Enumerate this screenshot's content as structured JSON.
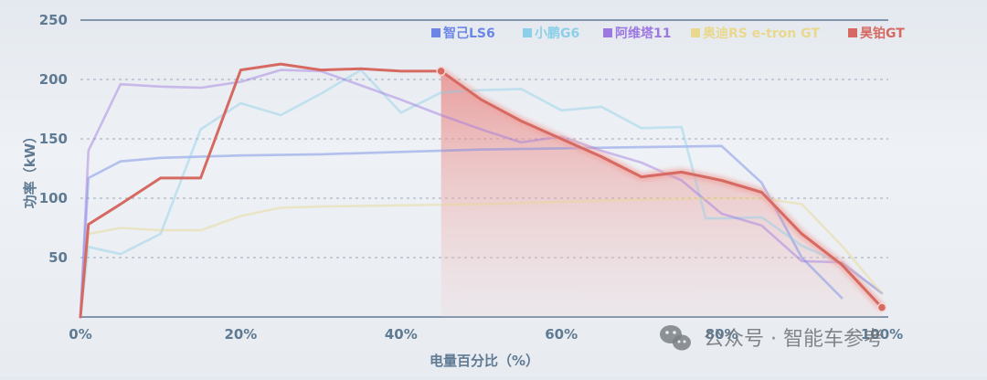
{
  "chart_data": {
    "type": "line",
    "xlabel": "电量百分比（%）",
    "ylabel": "功率（kW）",
    "xlim": [
      0,
      100
    ],
    "ylim": [
      0,
      250
    ],
    "y_ticks": [
      50,
      100,
      150,
      200,
      250
    ],
    "x_ticks": [
      0,
      20,
      40,
      60,
      80,
      100
    ],
    "x_tick_labels": [
      "0%",
      "20%",
      "40%",
      "60%",
      "80%",
      "100%"
    ],
    "grid": "horizontal-dashed",
    "legend_position": "top-right",
    "highlight_series": "昊铂GT",
    "highlight_from_x": 45,
    "series": [
      {
        "name": "智己LS6",
        "color": "#6b86e6",
        "points": [
          [
            0,
            0
          ],
          [
            1,
            117
          ],
          [
            5,
            131
          ],
          [
            10,
            134
          ],
          [
            20,
            136
          ],
          [
            30,
            137
          ],
          [
            40,
            139
          ],
          [
            50,
            141
          ],
          [
            60,
            142
          ],
          [
            70,
            143
          ],
          [
            80,
            144
          ],
          [
            85,
            113
          ],
          [
            90,
            50
          ],
          [
            95,
            16
          ]
        ]
      },
      {
        "name": "小鹏G6",
        "color": "#8ccfe8",
        "points": [
          [
            0,
            0
          ],
          [
            1,
            59
          ],
          [
            5,
            53
          ],
          [
            10,
            70
          ],
          [
            15,
            158
          ],
          [
            20,
            180
          ],
          [
            25,
            170
          ],
          [
            30,
            188
          ],
          [
            35,
            208
          ],
          [
            40,
            172
          ],
          [
            45,
            189
          ],
          [
            50,
            191
          ],
          [
            55,
            192
          ],
          [
            60,
            174
          ],
          [
            65,
            177
          ],
          [
            70,
            159
          ],
          [
            75,
            160
          ],
          [
            78,
            83
          ],
          [
            80,
            83
          ],
          [
            85,
            84
          ],
          [
            90,
            60
          ],
          [
            95,
            45
          ],
          [
            100,
            20
          ]
        ]
      },
      {
        "name": "阿维塔11",
        "color": "#9d78e0",
        "points": [
          [
            0,
            0
          ],
          [
            1,
            140
          ],
          [
            5,
            196
          ],
          [
            10,
            194
          ],
          [
            15,
            193
          ],
          [
            20,
            198
          ],
          [
            25,
            208
          ],
          [
            30,
            207
          ],
          [
            35,
            195
          ],
          [
            40,
            183
          ],
          [
            45,
            170
          ],
          [
            50,
            158
          ],
          [
            55,
            147
          ],
          [
            60,
            152
          ],
          [
            65,
            140
          ],
          [
            70,
            130
          ],
          [
            75,
            115
          ],
          [
            80,
            87
          ],
          [
            85,
            77
          ],
          [
            90,
            47
          ],
          [
            95,
            46
          ],
          [
            100,
            20
          ]
        ]
      },
      {
        "name": "奥迪RS e-tron GT",
        "color": "#e9d88e",
        "points": [
          [
            0,
            0
          ],
          [
            1,
            70
          ],
          [
            5,
            75
          ],
          [
            10,
            73
          ],
          [
            15,
            73
          ],
          [
            20,
            85
          ],
          [
            25,
            92
          ],
          [
            30,
            93
          ],
          [
            40,
            94
          ],
          [
            50,
            95
          ],
          [
            60,
            97
          ],
          [
            70,
            99
          ],
          [
            80,
            100
          ],
          [
            85,
            100
          ],
          [
            90,
            95
          ],
          [
            95,
            60
          ],
          [
            100,
            20
          ]
        ]
      },
      {
        "name": "昊铂GT",
        "color": "#d66a62",
        "points": [
          [
            0,
            0
          ],
          [
            1,
            78
          ],
          [
            5,
            95
          ],
          [
            10,
            117
          ],
          [
            15,
            117
          ],
          [
            20,
            208
          ],
          [
            25,
            213
          ],
          [
            30,
            208
          ],
          [
            35,
            209
          ],
          [
            40,
            207
          ],
          [
            45,
            207
          ],
          [
            50,
            183
          ],
          [
            55,
            165
          ],
          [
            60,
            150
          ],
          [
            65,
            135
          ],
          [
            70,
            118
          ],
          [
            75,
            122
          ],
          [
            80,
            115
          ],
          [
            85,
            105
          ],
          [
            90,
            70
          ],
          [
            95,
            44
          ],
          [
            100,
            8
          ]
        ]
      }
    ]
  },
  "watermark": {
    "text": "公众号 · 智能车参考",
    "icon": "wechat-icon"
  }
}
